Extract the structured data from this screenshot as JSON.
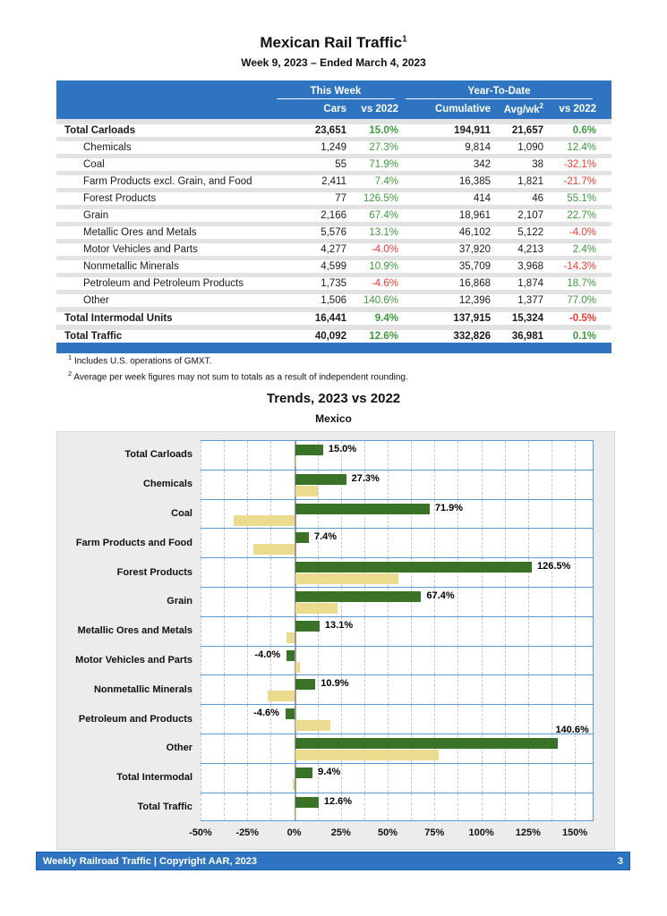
{
  "page": {
    "title": "Mexican Rail Traffic",
    "title_superscript": "1",
    "subtitle": "Week 9, 2023 – Ended March 4, 2023",
    "footnotes": [
      {
        "sup": "1",
        "text": "Includes U.S. operations of GMXT."
      },
      {
        "sup": "2",
        "text": "Average per week figures may not sum to totals as a result of independent rounding."
      }
    ],
    "footer": {
      "left": "Weekly Railroad Traffic | Copyright AAR, 2023",
      "page_number": "3"
    }
  },
  "table": {
    "group_headers": [
      {
        "label": "This Week"
      },
      {
        "label": "Year-To-Date"
      }
    ],
    "columns": [
      "Cars",
      "vs 2022",
      "Cumulative",
      "Avg/wk",
      "vs 2022"
    ],
    "avgwk_sup": "2",
    "rows": [
      {
        "label": "Total Carloads",
        "style": "total-first",
        "cars": "23,651",
        "cars_vs": "15.0%",
        "cumulative": "194,911",
        "avgwk": "21,657",
        "ytd_vs": "0.6%"
      },
      {
        "label": "Chemicals",
        "style": "item",
        "cars": "1,249",
        "cars_vs": "27.3%",
        "cumulative": "9,814",
        "avgwk": "1,090",
        "ytd_vs": "12.4%"
      },
      {
        "label": "Coal",
        "style": "item",
        "cars": "55",
        "cars_vs": "71.9%",
        "cumulative": "342",
        "avgwk": "38",
        "ytd_vs": "-32.1%"
      },
      {
        "label": "Farm Products excl. Grain, and Food",
        "style": "item",
        "cars": "2,411",
        "cars_vs": "7.4%",
        "cumulative": "16,385",
        "avgwk": "1,821",
        "ytd_vs": "-21.7%"
      },
      {
        "label": "Forest Products",
        "style": "item",
        "cars": "77",
        "cars_vs": "126.5%",
        "cumulative": "414",
        "avgwk": "46",
        "ytd_vs": "55.1%"
      },
      {
        "label": "Grain",
        "style": "item",
        "cars": "2,166",
        "cars_vs": "67.4%",
        "cumulative": "18,961",
        "avgwk": "2,107",
        "ytd_vs": "22.7%"
      },
      {
        "label": "Metallic Ores and Metals",
        "style": "item",
        "cars": "5,576",
        "cars_vs": "13.1%",
        "cumulative": "46,102",
        "avgwk": "5,122",
        "ytd_vs": "-4.0%"
      },
      {
        "label": "Motor Vehicles and Parts",
        "style": "item",
        "cars": "4,277",
        "cars_vs": "-4.0%",
        "cumulative": "37,920",
        "avgwk": "4,213",
        "ytd_vs": "2.4%"
      },
      {
        "label": "Nonmetallic Minerals",
        "style": "item",
        "cars": "4,599",
        "cars_vs": "10.9%",
        "cumulative": "35,709",
        "avgwk": "3,968",
        "ytd_vs": "-14.3%"
      },
      {
        "label": "Petroleum and Petroleum Products",
        "style": "item",
        "cars": "1,735",
        "cars_vs": "-4.6%",
        "cumulative": "16,868",
        "avgwk": "1,874",
        "ytd_vs": "18.7%"
      },
      {
        "label": "Other",
        "style": "item",
        "cars": "1,506",
        "cars_vs": "140.6%",
        "cumulative": "12,396",
        "avgwk": "1,377",
        "ytd_vs": "77.0%"
      },
      {
        "label": "Total Intermodal Units",
        "style": "total",
        "cars": "16,441",
        "cars_vs": "9.4%",
        "cumulative": "137,915",
        "avgwk": "15,324",
        "ytd_vs": "-0.5%"
      },
      {
        "label": "Total Traffic",
        "style": "total",
        "cars": "40,092",
        "cars_vs": "12.6%",
        "cumulative": "332,826",
        "avgwk": "36,981",
        "ytd_vs": "0.1%"
      }
    ]
  },
  "chart": {
    "title": "Trends, 2023 vs 2022",
    "subtitle": "Mexico"
  },
  "chart_data": {
    "type": "bar",
    "orientation": "horizontal",
    "title": "Trends, 2023 vs 2022",
    "subtitle": "Mexico",
    "categories": [
      "Total Carloads",
      "Chemicals",
      "Coal",
      "Farm Products and Food",
      "Forest Products",
      "Grain",
      "Metallic Ores and Metals",
      "Motor Vehicles and Parts",
      "Nonmetallic Minerals",
      "Petroleum and Products",
      "Other",
      "Total Intermodal",
      "Total Traffic"
    ],
    "series": [
      {
        "name": "This Week",
        "color": "#3A7327",
        "values": [
          15.0,
          27.3,
          71.9,
          7.4,
          126.5,
          67.4,
          13.1,
          -4.0,
          10.9,
          -4.6,
          140.6,
          9.4,
          12.6
        ]
      },
      {
        "name": "Year-To-Date",
        "color": "#EBDB8E",
        "values": [
          0.6,
          12.4,
          -32.1,
          -21.7,
          55.1,
          22.7,
          -4.0,
          2.4,
          -14.3,
          18.7,
          77.0,
          -0.5,
          0.1
        ]
      }
    ],
    "bar_labels": [
      "15.0%",
      "27.3%",
      "71.9%",
      "7.4%",
      "126.5%",
      "67.4%",
      "13.1%",
      "-4.0%",
      "10.9%",
      "-4.6%",
      "140.6%",
      "9.4%",
      "12.6%"
    ],
    "label_above_indices": [
      10
    ],
    "xlim": [
      -50,
      160
    ],
    "x_tick_values": [
      -50,
      -25,
      0,
      25,
      50,
      75,
      100,
      125,
      150
    ],
    "x_ticks": [
      "-50%",
      "-25%",
      "0%",
      "25%",
      "50%",
      "75%",
      "100%",
      "125%",
      "150%"
    ],
    "gridline_step": 12.5,
    "grid": "dashed-vertical",
    "legend_position": "top-right"
  }
}
